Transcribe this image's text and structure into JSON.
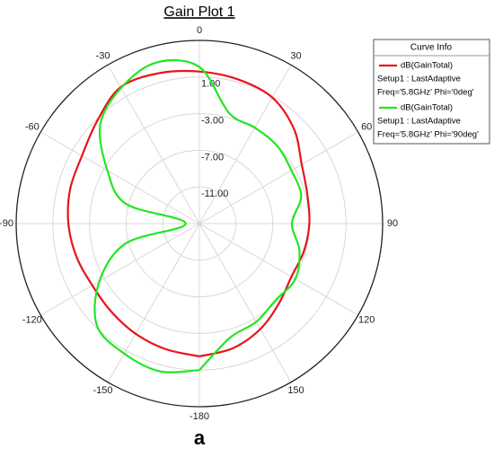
{
  "chart_data": {
    "type": "polar",
    "title": "Gain Plot 1",
    "caption": "a",
    "legend_title": "Curve Info",
    "legend": "upper right",
    "grid": true,
    "rlim": [
      -15,
      5
    ],
    "rticks": [
      {
        "value": 1,
        "label": "1.00"
      },
      {
        "value": -3,
        "label": "-3.00"
      },
      {
        "value": -7,
        "label": "-7.00"
      },
      {
        "value": -11,
        "label": "-11.00"
      }
    ],
    "thetaticks": [
      0,
      30,
      60,
      90,
      120,
      150,
      -180,
      -150,
      -120,
      -90,
      -60,
      -30
    ],
    "x": [
      -180,
      -165,
      -150,
      -135,
      -120,
      -105,
      -90,
      -75,
      -60,
      -45,
      -30,
      -15,
      0,
      15,
      30,
      45,
      60,
      75,
      90,
      105,
      120,
      135,
      150,
      165,
      180
    ],
    "series": [
      {
        "name": "dB(GainTotal)",
        "setup": "Setup1 : LastAdaptive",
        "condition": "Freq='5.8GHz' Phi='0deg'",
        "color": "#e8141b",
        "values": [
          -0.5,
          -0.8,
          -1.1,
          -1.4,
          -1.5,
          -1.1,
          -0.7,
          -0.4,
          -0.2,
          0.8,
          2.2,
          2.0,
          1.6,
          1.3,
          0.9,
          -0.4,
          -2.1,
          -2.8,
          -3.0,
          -3.2,
          -3.4,
          -2.7,
          -1.7,
          -0.9,
          -0.5
        ]
      },
      {
        "name": "dB(GainTotal)",
        "setup": "Setup1 : LastAdaptive",
        "condition": "Freq='5.8GHz' Phi='90deg'",
        "color": "#22e622",
        "values": [
          1.0,
          1.7,
          1.4,
          0.8,
          -2.4,
          -6.7,
          -13.5,
          -6.7,
          -3.4,
          0.3,
          2.1,
          3.2,
          2.1,
          -2.5,
          -2.9,
          -3.0,
          -3.4,
          -3.5,
          -4.9,
          -3.7,
          -2.9,
          -3.2,
          -2.6,
          -2.1,
          1.0
        ]
      }
    ]
  }
}
